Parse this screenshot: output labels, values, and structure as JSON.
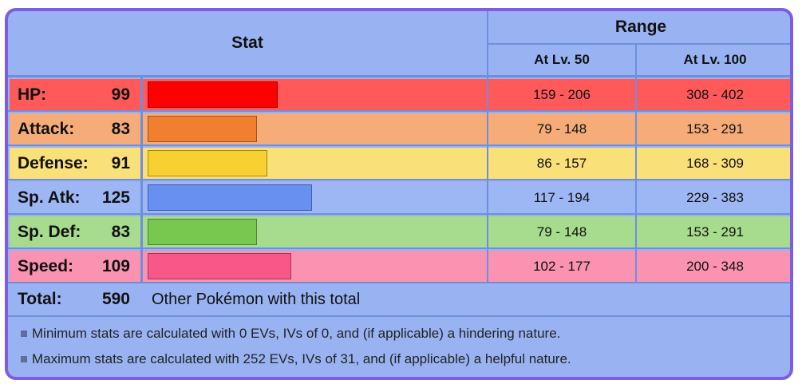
{
  "header": {
    "stat": "Stat",
    "range": "Range",
    "lv50": "At Lv. 50",
    "lv100": "At Lv. 100"
  },
  "stats": [
    {
      "name": "HP:",
      "value": 99,
      "lv50": "159 - 206",
      "lv100": "308 - 402",
      "row_color": "#ff5959",
      "bar_color": "#ff0000"
    },
    {
      "name": "Attack:",
      "value": 83,
      "lv50": "79 - 148",
      "lv100": "153 - 291",
      "row_color": "#f5ac78",
      "bar_color": "#f08030"
    },
    {
      "name": "Defense:",
      "value": 91,
      "lv50": "86 - 157",
      "lv100": "168 - 309",
      "row_color": "#fae078",
      "bar_color": "#f8d030"
    },
    {
      "name": "Sp. Atk:",
      "value": 125,
      "lv50": "117 - 194",
      "lv100": "229 - 383",
      "row_color": "#9db7f5",
      "bar_color": "#6890f0"
    },
    {
      "name": "Sp. Def:",
      "value": 83,
      "lv50": "79 - 148",
      "lv100": "153 - 291",
      "row_color": "#a7db8d",
      "bar_color": "#78c850"
    },
    {
      "name": "Speed:",
      "value": 109,
      "lv50": "102 - 177",
      "lv100": "200 - 348",
      "row_color": "#fa92b2",
      "bar_color": "#f85888"
    }
  ],
  "bar_max": 255,
  "total": {
    "label": "Total:",
    "value": 590,
    "link": "Other Pokémon with this total"
  },
  "notes": [
    "Minimum stats are calculated with 0 EVs, IVs of 0, and (if applicable) a hindering nature.",
    "Maximum stats are calculated with 252 EVs, IVs of 31, and (if applicable) a helpful nature."
  ],
  "colors": {
    "border": "#7b5fe0",
    "table_bg": "#99b3f2"
  }
}
